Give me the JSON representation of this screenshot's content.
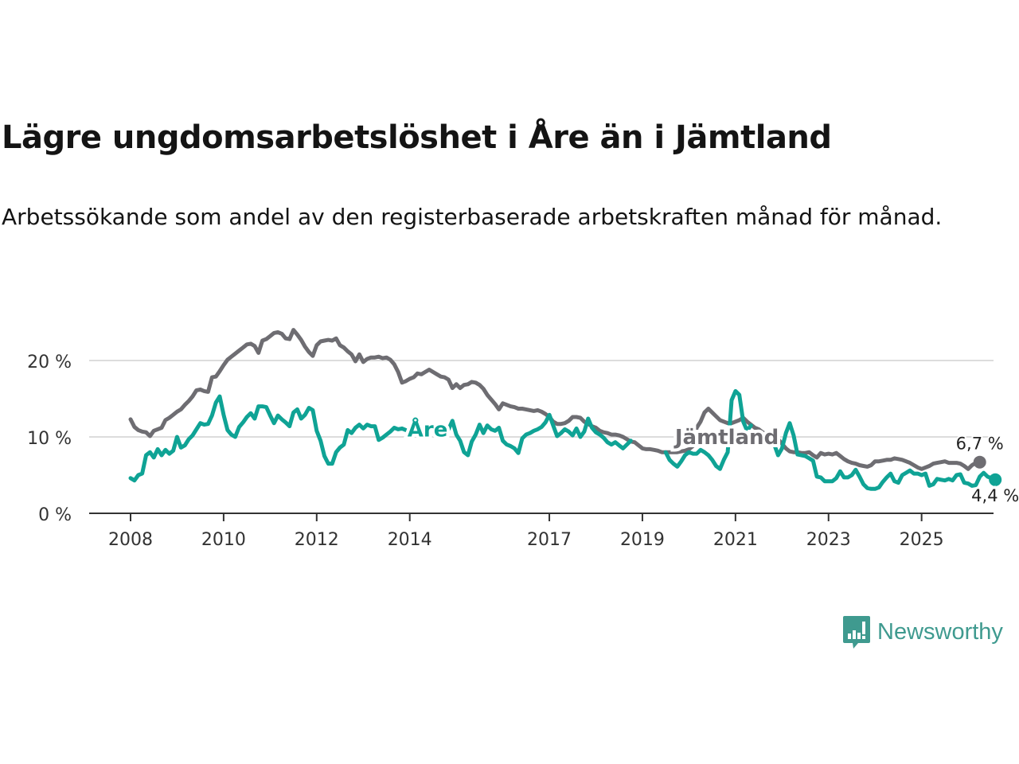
{
  "title": "Lägre ungdomsarbetslöshet i Åre än i Jämtland",
  "subtitle": "Arbetssökande som andel av den registerbaserade arbetskraften månad för månad.",
  "logo": {
    "text": "Newsworthy",
    "icon": "bar-chart-exclamation-icon",
    "color": "#3f9a8f"
  },
  "chart_data": {
    "type": "line",
    "title": "Lägre ungdomsarbetslöshet i Åre än i Jämtland",
    "xlabel": "",
    "ylabel": "",
    "ylim": [
      0,
      20
    ],
    "xlim": [
      2008.0,
      2025.75
    ],
    "y_ticks": [
      {
        "v": 0,
        "label": "0 %"
      },
      {
        "v": 10,
        "label": "10 %"
      },
      {
        "v": 20,
        "label": "20 %"
      }
    ],
    "x_ticks": [
      {
        "v": 2008,
        "label": "2008"
      },
      {
        "v": 2010,
        "label": "2010"
      },
      {
        "v": 2012,
        "label": "2012"
      },
      {
        "v": 2014,
        "label": "2014"
      },
      {
        "v": 2017,
        "label": "2017"
      },
      {
        "v": 2019,
        "label": "2019"
      },
      {
        "v": 2021,
        "label": "2021"
      },
      {
        "v": 2023,
        "label": "2023"
      },
      {
        "v": 2025,
        "label": "2025"
      }
    ],
    "grid": true,
    "x_start": 2008.0,
    "x_step_months": 1,
    "series": [
      {
        "name": "Jämtland",
        "color": "#6e6d72",
        "label": "Jämtland",
        "end_label": "6,7 %",
        "values": [
          12.3,
          11.3,
          10.9,
          10.7,
          10.6,
          10.1,
          10.8,
          11.0,
          11.2,
          12.2,
          12.5,
          12.9,
          13.3,
          13.6,
          14.2,
          14.7,
          15.3,
          16.1,
          16.2,
          16.0,
          15.9,
          17.8,
          17.9,
          18.6,
          19.4,
          20.1,
          20.5,
          20.9,
          21.3,
          21.7,
          22.1,
          22.2,
          21.9,
          21.0,
          22.6,
          22.8,
          23.2,
          23.6,
          23.7,
          23.5,
          22.9,
          22.8,
          24.0,
          23.4,
          22.7,
          21.8,
          21.1,
          20.6,
          22.0,
          22.5,
          22.6,
          22.7,
          22.6,
          22.9,
          22.0,
          21.7,
          21.2,
          20.8,
          19.9,
          20.8,
          19.8,
          20.2,
          20.4,
          20.4,
          20.5,
          20.3,
          20.4,
          20.1,
          19.5,
          18.5,
          17.1,
          17.3,
          17.6,
          17.8,
          18.3,
          18.2,
          18.5,
          18.8,
          18.5,
          18.2,
          17.9,
          17.8,
          17.5,
          16.4,
          16.9,
          16.4,
          16.8,
          16.9,
          17.2,
          17.1,
          16.8,
          16.3,
          15.5,
          14.9,
          14.3,
          13.6,
          14.4,
          14.2,
          14.0,
          13.9,
          13.7,
          13.7,
          13.6,
          13.5,
          13.4,
          13.5,
          13.3,
          13.0,
          12.6,
          12.0,
          11.7,
          11.7,
          11.8,
          12.1,
          12.6,
          12.6,
          12.5,
          12.0,
          11.7,
          11.4,
          11.2,
          10.8,
          10.6,
          10.5,
          10.3,
          10.3,
          10.2,
          10.0,
          9.7,
          9.4,
          9.3,
          8.9,
          8.5,
          8.4,
          8.4,
          8.3,
          8.2,
          8.0,
          8.0,
          8.0,
          8.0,
          8.0,
          8.1,
          8.2,
          8.4,
          8.8,
          11.2,
          12.0,
          13.2,
          13.7,
          13.2,
          12.7,
          12.2,
          12.0,
          11.8,
          11.8,
          12.0,
          12.2,
          12.5,
          12.0,
          11.6,
          11.2,
          11.0,
          10.6,
          10.3,
          10.3,
          10.1,
          9.7,
          9.1,
          8.5,
          8.1,
          8.0,
          8.0,
          7.9,
          7.9,
          8.0,
          7.6,
          7.3,
          7.9,
          7.7,
          7.8,
          7.7,
          7.9,
          7.5,
          7.1,
          6.8,
          6.6,
          6.5,
          6.3,
          6.2,
          6.1,
          6.3,
          6.8,
          6.8,
          6.9,
          7.0,
          7.0,
          7.2,
          7.1,
          7.0,
          6.8,
          6.6,
          6.3,
          6.0,
          5.8,
          6.0,
          6.2,
          6.5,
          6.6,
          6.7,
          6.8,
          6.6,
          6.6,
          6.6,
          6.5,
          6.2,
          5.8,
          6.3,
          6.6,
          6.7
        ]
      },
      {
        "name": "Åre",
        "color": "#0fa395",
        "label": "Åre",
        "end_label": "4,4 %",
        "values": [
          4.6,
          4.3,
          5.0,
          5.2,
          7.6,
          8.0,
          7.3,
          8.4,
          7.6,
          8.3,
          7.8,
          8.2,
          10.0,
          8.6,
          8.9,
          9.7,
          10.2,
          11.0,
          11.8,
          11.6,
          11.7,
          12.8,
          14.5,
          15.3,
          12.9,
          10.9,
          10.3,
          10.0,
          11.3,
          11.9,
          12.6,
          13.1,
          12.4,
          14.0,
          14.0,
          13.9,
          12.8,
          11.8,
          12.8,
          12.3,
          11.9,
          11.4,
          13.2,
          13.6,
          12.4,
          12.9,
          13.8,
          13.5,
          10.8,
          9.5,
          7.5,
          6.5,
          6.5,
          8.0,
          8.6,
          9.0,
          10.9,
          10.5,
          11.2,
          11.6,
          11.1,
          11.6,
          11.4,
          11.4,
          9.6,
          9.9,
          10.3,
          10.7,
          11.2,
          11.0,
          11.1,
          10.9,
          null,
          null,
          null,
          null,
          null,
          null,
          10.7,
          10.8,
          10.9,
          11.2,
          11.0,
          12.1,
          10.3,
          9.5,
          8.0,
          7.6,
          9.4,
          10.3,
          11.6,
          10.5,
          11.5,
          11.0,
          10.8,
          11.2,
          9.5,
          9.0,
          8.8,
          8.5,
          7.9,
          9.8,
          10.3,
          10.5,
          10.8,
          11.0,
          11.3,
          11.9,
          12.9,
          11.5,
          10.1,
          10.5,
          11.0,
          10.7,
          10.2,
          11.1,
          10.0,
          10.7,
          12.4,
          11.2,
          10.6,
          10.3,
          9.9,
          9.3,
          9.0,
          9.3,
          8.9,
          8.5,
          9.0,
          9.5,
          null,
          null,
          null,
          null,
          null,
          null,
          null,
          null,
          8.0,
          7.0,
          6.5,
          6.1,
          6.8,
          7.6,
          8.0,
          7.8,
          7.8,
          8.3,
          8.0,
          7.6,
          7.0,
          6.2,
          5.8,
          7.0,
          8.0,
          14.8,
          16.0,
          15.5,
          12.0,
          10.8,
          11.5,
          null,
          null,
          null,
          null,
          10.2,
          9.0,
          7.6,
          8.5,
          10.5,
          11.8,
          10.2,
          7.7,
          7.6,
          7.5,
          7.2,
          6.9,
          4.8,
          4.7,
          4.2,
          4.2,
          4.2,
          4.6,
          5.5,
          4.7,
          4.7,
          5.0,
          5.7,
          4.8,
          3.8,
          3.3,
          3.2,
          3.2,
          3.4,
          4.1,
          4.7,
          5.2,
          4.2,
          4.0,
          5.0,
          5.3,
          5.6,
          5.2,
          5.2,
          5.0,
          5.2,
          3.6,
          3.8,
          4.5,
          4.4,
          4.3,
          4.5,
          4.3,
          5.0,
          5.1,
          4.0,
          3.9,
          3.6,
          3.7,
          4.8,
          5.3,
          4.8,
          4.6,
          4.4
        ]
      }
    ],
    "annotations": [
      {
        "text": "Åre",
        "series": "Åre",
        "x": 2013.95,
        "y": 11.0
      },
      {
        "text": "Jämtland",
        "series": "Jämtland",
        "x": 2019.7,
        "y": 10.0
      },
      {
        "text": "6,7 %",
        "series": "Jämtland",
        "position": "end-above"
      },
      {
        "text": "4,4 %",
        "series": "Åre",
        "position": "end-below"
      }
    ]
  }
}
